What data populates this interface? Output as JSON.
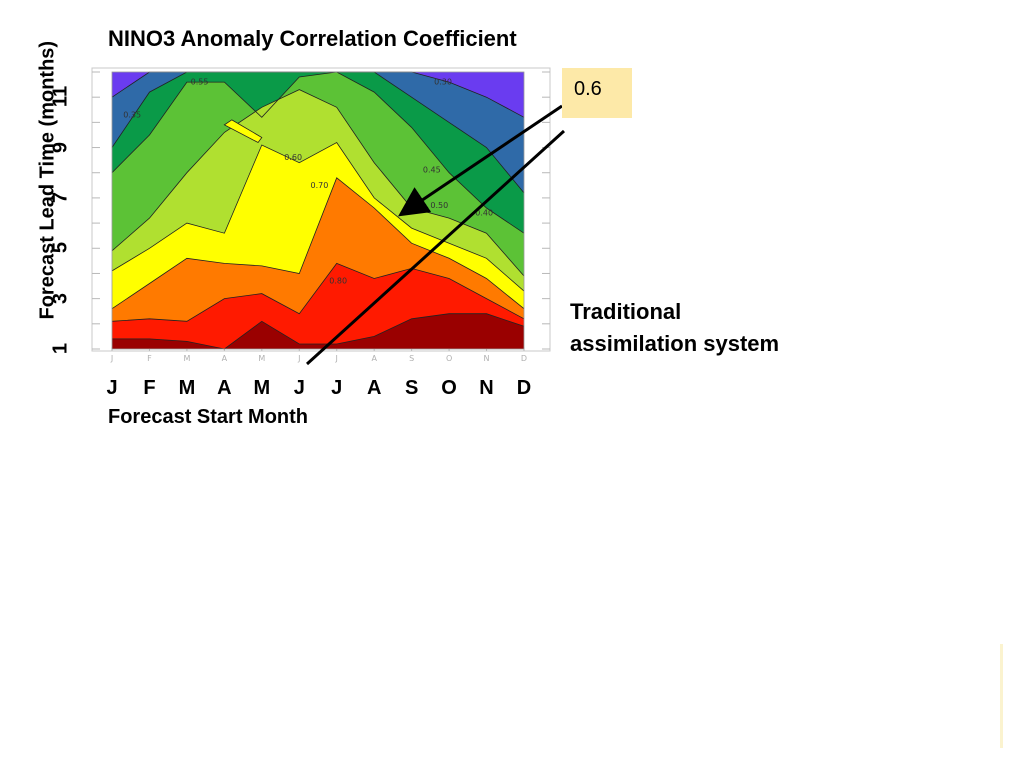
{
  "chart_data": {
    "type": "heatmap",
    "title": "NINO3 Anomaly Correlation Coefficient",
    "xlabel": "Forecast Start Month",
    "ylabel": "Forecast Lead Time (months)",
    "x_ticks": [
      "J",
      "F",
      "M",
      "A",
      "M",
      "J",
      "J",
      "A",
      "S",
      "O",
      "N",
      "D"
    ],
    "y_ticks": [
      "1",
      "3",
      "5",
      "7",
      "9",
      "11"
    ],
    "y_range": [
      1,
      12
    ],
    "contour_labels": [
      "0.30",
      "0.35",
      "0.40",
      "0.45",
      "0.50",
      "0.55",
      "0.60",
      "0.70",
      "0.80"
    ],
    "color_levels": [
      {
        "min": 0.9,
        "color": "#9a0000"
      },
      {
        "min": 0.8,
        "color": "#ff1a00"
      },
      {
        "min": 0.7,
        "color": "#ff7a00"
      },
      {
        "min": 0.6,
        "color": "#ffff00"
      },
      {
        "min": 0.5,
        "color": "#b0e030"
      },
      {
        "min": 0.4,
        "color": "#5cc236"
      },
      {
        "min": 0.3,
        "color": "#0a9a48"
      },
      {
        "min": 0.2,
        "color": "#2f6aa8"
      },
      {
        "min": 0.0,
        "color": "#6a3cf0"
      }
    ],
    "boundaries": {
      "x_months": [
        1,
        2,
        3,
        4,
        5,
        6,
        7,
        8,
        9,
        10,
        11,
        12
      ],
      "lead_at_0.9": [
        1.4,
        1.4,
        1.3,
        1.0,
        2.1,
        1.2,
        1.2,
        1.5,
        2.2,
        2.4,
        2.4,
        1.9
      ],
      "lead_at_0.8": [
        2.1,
        2.2,
        2.1,
        3.0,
        3.2,
        2.4,
        4.4,
        3.8,
        4.2,
        3.8,
        3.0,
        2.2
      ],
      "lead_at_0.7": [
        2.6,
        3.6,
        4.6,
        4.4,
        4.3,
        4.0,
        7.8,
        6.6,
        5.2,
        4.6,
        3.8,
        2.6
      ],
      "lead_at_0.6": [
        4.1,
        5.0,
        6.0,
        5.6,
        9.1,
        8.4,
        9.2,
        7.0,
        5.8,
        5.2,
        4.6,
        3.3
      ],
      "lead_at_0.5": [
        4.9,
        6.2,
        8.0,
        9.6,
        10.6,
        11.3,
        10.6,
        8.4,
        6.6,
        6.2,
        5.6,
        3.9
      ],
      "lead_at_0.4": [
        8.0,
        9.5,
        11.6,
        11.6,
        10.2,
        11.8,
        12.0,
        11.2,
        9.8,
        8.0,
        6.6,
        5.6
      ],
      "lead_at_0.3": [
        9.0,
        11.2,
        12.0,
        12.0,
        12.0,
        12.0,
        12.0,
        12.0,
        11.0,
        10.0,
        9.0,
        7.2
      ],
      "lead_at_0.2": [
        11.0,
        12.0,
        12.0,
        12.0,
        12.0,
        12.0,
        12.0,
        12.0,
        12.0,
        11.6,
        11.0,
        10.2
      ]
    }
  },
  "annotation": {
    "callout_value": "0.6",
    "note_line1": "Traditional",
    "note_line2": "assimilation system"
  }
}
